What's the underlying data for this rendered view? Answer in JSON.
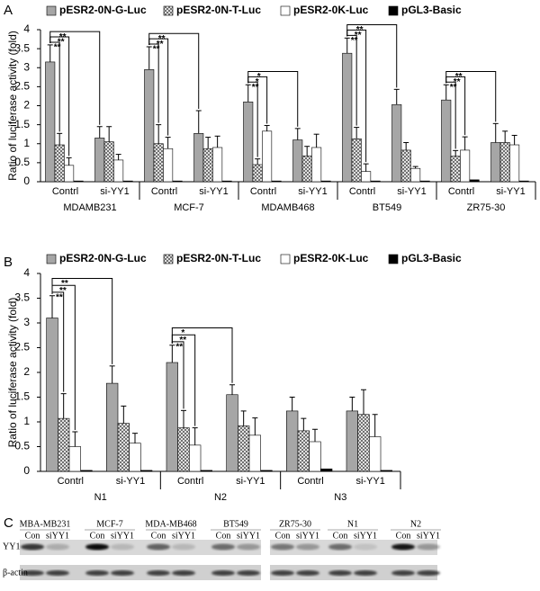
{
  "chart_data": [
    {
      "type": "bar",
      "panel": "A",
      "ylabel": "Ratio of luciferase activity (fold)",
      "categories": [
        "Contrl",
        "si-YY1",
        "Contrl",
        "si-YY1",
        "Contrl",
        "si-YY1",
        "Contrl",
        "si-YY1",
        "Contrl",
        "si-YY1"
      ],
      "groups": [
        "MDAMB231",
        "MCF-7",
        "MDAMB468",
        "BT549",
        "ZR75-30"
      ],
      "series": [
        {
          "name": "pESR2-0N-G-Luc",
          "color": "#a6a6a6",
          "pattern": "solid",
          "values": [
            3.15,
            1.15,
            2.95,
            1.27,
            2.1,
            1.1,
            3.38,
            2.03,
            2.15,
            1.03
          ],
          "errors": [
            0.45,
            0.3,
            0.6,
            0.6,
            0.45,
            0.3,
            0.4,
            0.4,
            0.4,
            0.5
          ]
        },
        {
          "name": "pESR2-0N-T-Luc",
          "color": "#555555",
          "pattern": "crosshatch",
          "values": [
            0.97,
            1.05,
            1.0,
            0.87,
            0.45,
            0.68,
            1.13,
            0.83,
            0.67,
            1.03
          ],
          "errors": [
            0.3,
            0.4,
            0.5,
            0.3,
            0.15,
            0.25,
            0.3,
            0.2,
            0.15,
            0.3
          ]
        },
        {
          "name": "pESR2-0K-Luc",
          "color": "#ffffff",
          "pattern": "solid",
          "values": [
            0.43,
            0.57,
            0.87,
            0.9,
            1.33,
            0.9,
            0.27,
            0.35,
            0.83,
            0.97
          ],
          "errors": [
            0.2,
            0.15,
            0.3,
            0.3,
            0.15,
            0.35,
            0.2,
            0.05,
            0.35,
            0.25
          ]
        },
        {
          "name": "pGL3-Basic",
          "color": "#000000",
          "pattern": "solid",
          "values": [
            0.02,
            0.02,
            0.02,
            0.02,
            0.02,
            0.02,
            0.02,
            0.02,
            0.05,
            0.02
          ]
        }
      ],
      "annotations": [
        "**",
        "**",
        "**",
        "**",
        "**",
        "**",
        "**",
        "*",
        "*",
        "**",
        "**",
        "**",
        "**",
        "**",
        "**"
      ],
      "ylim": [
        0,
        4
      ],
      "yticks": [
        0,
        0.5,
        1,
        1.5,
        2,
        2.5,
        3,
        3.5,
        4
      ],
      "legend": "top"
    },
    {
      "type": "bar",
      "panel": "B",
      "ylabel": "Ratio of luciferase activity (fold)",
      "categories": [
        "Contrl",
        "si-YY1",
        "Contrl",
        "si-YY1",
        "Contrl",
        "si-YY1"
      ],
      "groups": [
        "N1",
        "N2",
        "N3"
      ],
      "series": [
        {
          "name": "pESR2-0N-G-Luc",
          "color": "#a6a6a6",
          "pattern": "solid",
          "values": [
            3.1,
            1.78,
            2.2,
            1.55,
            1.22,
            1.22
          ],
          "errors": [
            0.45,
            0.35,
            0.35,
            0.2,
            0.28,
            0.28
          ]
        },
        {
          "name": "pESR2-0N-T-Luc",
          "color": "#555555",
          "pattern": "crosshatch",
          "values": [
            1.07,
            0.97,
            0.88,
            0.92,
            0.82,
            1.15
          ],
          "errors": [
            0.5,
            0.35,
            0.35,
            0.3,
            0.25,
            0.5
          ]
        },
        {
          "name": "pESR2-0K-Luc",
          "color": "#ffffff",
          "pattern": "solid",
          "values": [
            0.5,
            0.57,
            0.53,
            0.73,
            0.6,
            0.7
          ],
          "errors": [
            0.3,
            0.2,
            0.35,
            0.35,
            0.25,
            0.45
          ]
        },
        {
          "name": "pGL3-Basic",
          "color": "#000000",
          "pattern": "solid",
          "values": [
            0.02,
            0.02,
            0.02,
            0.02,
            0.05,
            0.02
          ]
        }
      ],
      "annotations": [
        "**",
        "**",
        "**",
        "**",
        "**",
        "*"
      ],
      "ylim": [
        0,
        4
      ],
      "yticks": [
        0,
        0.5,
        1,
        1.5,
        2,
        2.5,
        3,
        3.5,
        4
      ],
      "legend": "top"
    }
  ],
  "blot": {
    "panel": "C",
    "cell_lines": [
      "MBA-MB231",
      "MCF-7",
      "MDA-MB468",
      "BT549",
      "ZR75-30",
      "N1",
      "N2"
    ],
    "lanes": [
      "Con",
      "siYY1",
      "Con",
      "siYY1",
      "Con",
      "siYY1",
      "Con",
      "siYY1",
      "Con",
      "siYY1",
      "Con",
      "siYY1",
      "Con",
      "siYY1"
    ],
    "rows": [
      "YY1",
      "β-actin"
    ]
  }
}
